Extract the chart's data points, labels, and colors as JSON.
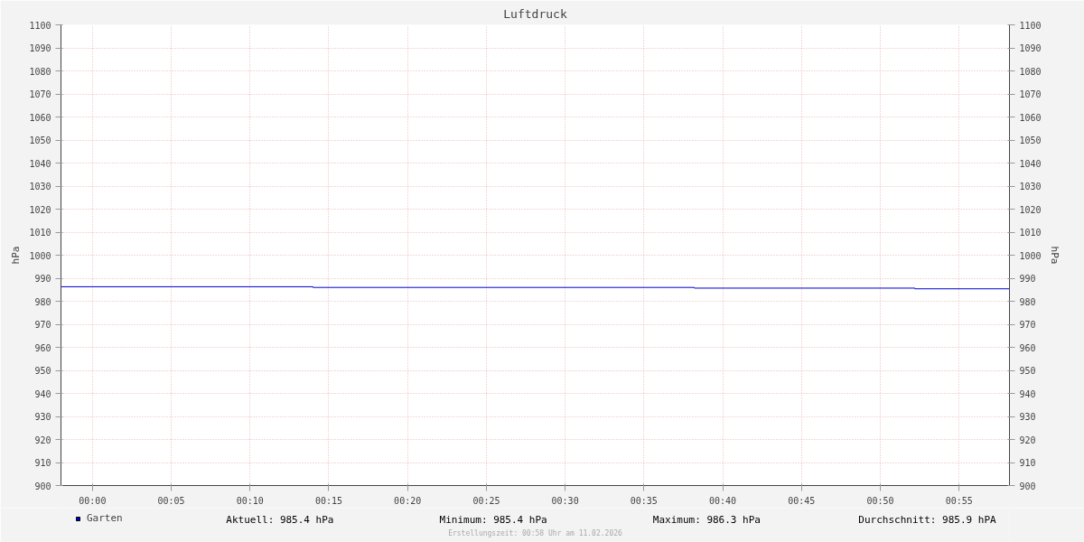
{
  "chart_data": {
    "type": "step",
    "title": "Luftdruck",
    "ylabel": "hPa",
    "y2label": "hPa",
    "x": [
      -0.0333,
      0.2333,
      0.6367,
      0.87,
      0.97
    ],
    "series": [
      {
        "name": "Garten",
        "color": "#0000cc",
        "values": [
          986.3,
          986.0,
          985.7,
          985.4,
          985.4
        ]
      }
    ],
    "xlim": [
      -0.0333,
      0.97
    ],
    "xticks": [
      {
        "value": 0,
        "label": "00:00"
      },
      {
        "value": 0.0833,
        "label": "00:05"
      },
      {
        "value": 0.1667,
        "label": "00:10"
      },
      {
        "value": 0.25,
        "label": "00:15"
      },
      {
        "value": 0.3333,
        "label": "00:20"
      },
      {
        "value": 0.4167,
        "label": "00:25"
      },
      {
        "value": 0.5,
        "label": "00:30"
      },
      {
        "value": 0.5833,
        "label": "00:35"
      },
      {
        "value": 0.6667,
        "label": "00:40"
      },
      {
        "value": 0.75,
        "label": "00:45"
      },
      {
        "value": 0.8333,
        "label": "00:50"
      },
      {
        "value": 0.9167,
        "label": "00:55"
      }
    ],
    "ylim": [
      900,
      1100
    ],
    "yticks": [
      900,
      910,
      920,
      930,
      940,
      950,
      960,
      970,
      980,
      990,
      1000,
      1010,
      1020,
      1030,
      1040,
      1050,
      1060,
      1070,
      1080,
      1090,
      1100
    ],
    "y2lim": [
      900,
      1100
    ],
    "y2ticks": [
      900,
      910,
      920,
      930,
      940,
      950,
      960,
      970,
      980,
      990,
      1000,
      1010,
      1020,
      1030,
      1040,
      1050,
      1060,
      1070,
      1080,
      1090,
      1100
    ],
    "grid": true,
    "legend": "bottom left",
    "annotations": [
      "Aktuell: 985.4 hPa",
      "Minimum: 985.4 hPa",
      "Maximum: 986.3 hPa",
      "Durchschnitt: 985.9 hPA",
      "Erstellungszeit: 00:58 Uhr am 11.02.2026"
    ]
  }
}
